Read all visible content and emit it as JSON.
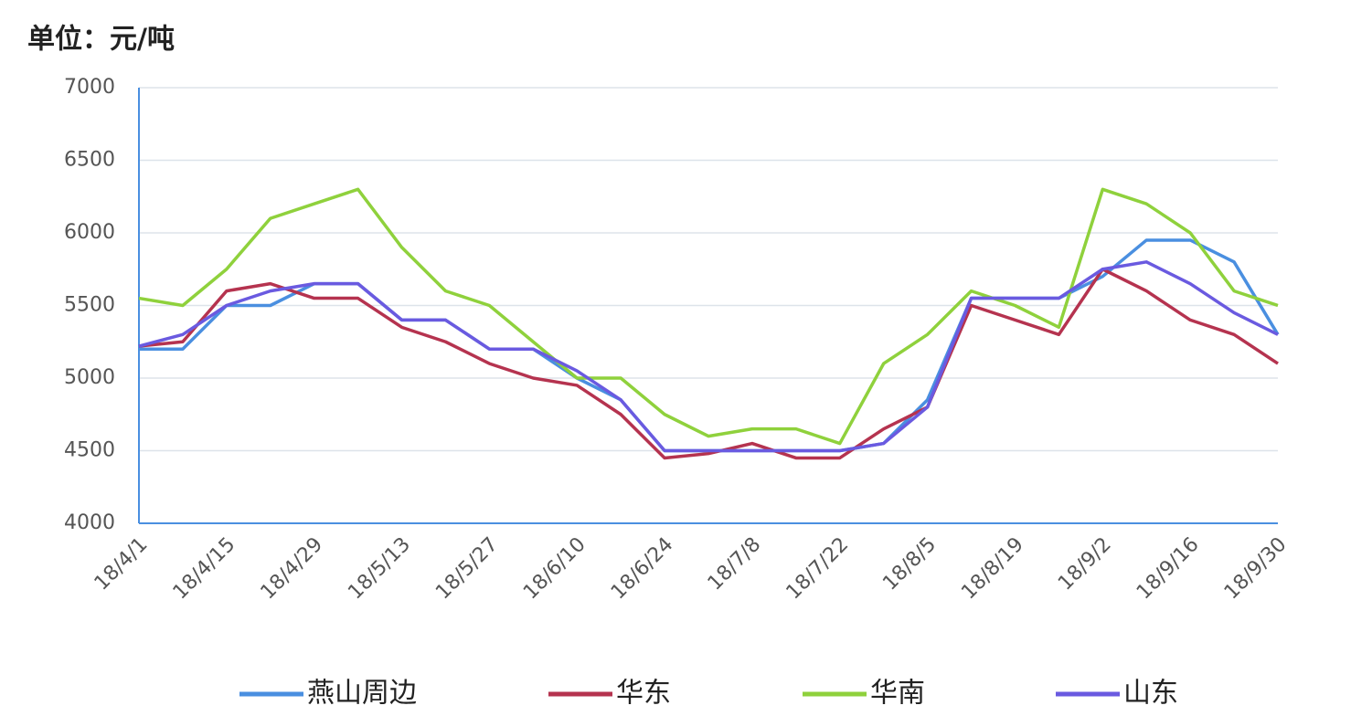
{
  "chart_data": {
    "type": "line",
    "title": "单位：元/吨",
    "categories": [
      "18/4/1",
      null,
      "18/4/15",
      null,
      "18/4/29",
      null,
      "18/5/13",
      null,
      "18/5/27",
      null,
      "18/6/10",
      null,
      "18/6/24",
      null,
      "18/7/8",
      null,
      "18/7/22",
      null,
      "18/8/5",
      null,
      "18/8/19",
      null,
      "18/9/2",
      null,
      "18/9/16",
      null,
      "18/9/30"
    ],
    "series": [
      {
        "name": "燕山周边",
        "color": "#4a8fe0",
        "values": [
          5200,
          5200,
          5500,
          5500,
          5650,
          5650,
          5400,
          5400,
          5200,
          5200,
          5000,
          4850,
          4500,
          4500,
          4500,
          4500,
          4500,
          4550,
          4850,
          5550,
          5550,
          5550,
          5700,
          5950,
          5950,
          5800,
          5300
        ]
      },
      {
        "name": "华东",
        "color": "#b5334f",
        "values": [
          5220,
          5250,
          5600,
          5650,
          5550,
          5550,
          5350,
          5250,
          5100,
          5000,
          4950,
          4750,
          4450,
          4480,
          4550,
          4450,
          4450,
          4650,
          4800,
          5500,
          5400,
          5300,
          5750,
          5600,
          5400,
          5300,
          5100
        ]
      },
      {
        "name": "华南",
        "color": "#8fd13c",
        "values": [
          5550,
          5500,
          5750,
          6100,
          6200,
          6300,
          5900,
          5600,
          5500,
          5250,
          5000,
          5000,
          4750,
          4600,
          4650,
          4650,
          4550,
          5100,
          5300,
          5600,
          5500,
          5350,
          6300,
          6200,
          6000,
          5600,
          5500
        ]
      },
      {
        "name": "山东",
        "color": "#6a5ae0",
        "values": [
          5220,
          5300,
          5500,
          5600,
          5650,
          5650,
          5400,
          5400,
          5200,
          5200,
          5050,
          4850,
          4500,
          4500,
          4500,
          4500,
          4500,
          4550,
          4800,
          5550,
          5550,
          5550,
          5750,
          5800,
          5650,
          5450,
          5300
        ]
      }
    ],
    "ylim": [
      4000,
      7000
    ],
    "yticks": [
      4000,
      4500,
      5000,
      5500,
      6000,
      6500,
      7000
    ],
    "grid": true
  }
}
